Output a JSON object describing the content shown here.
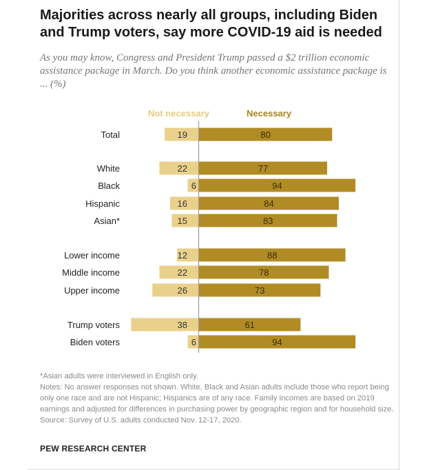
{
  "title": "Majorities across nearly all groups, including Biden and Trump voters, say more COVID-19 aid is needed",
  "subtitle": "As you may know, Congress and President Trump passed a $2 trillion economic assistance package in March. Do you think another economic assistance package is ... (%)",
  "chart_data": {
    "type": "bar",
    "orientation": "horizontal-diverging",
    "series": [
      {
        "name": "Not necessary",
        "color": "#ead18b",
        "values": [
          19,
          22,
          6,
          16,
          15,
          12,
          22,
          26,
          38,
          6
        ]
      },
      {
        "name": "Necessary",
        "color": "#b18c25",
        "values": [
          80,
          77,
          94,
          84,
          83,
          88,
          78,
          73,
          61,
          94
        ]
      }
    ],
    "categories": [
      "Total",
      "White",
      "Black",
      "Hispanic",
      "Asian*",
      "Lower income",
      "Middle income",
      "Upper income",
      "Trump voters",
      "Biden voters"
    ],
    "groups": [
      [
        0
      ],
      [
        1,
        2,
        3,
        4
      ],
      [
        5,
        6,
        7
      ],
      [
        8,
        9
      ]
    ],
    "xlim": [
      -40,
      95
    ]
  },
  "notes": {
    "asian": "*Asian adults were interviewed in English only.",
    "notes": "Notes: No answer responses not shown. White, Black and Asian adults include those who report being only one race and are not Hispanic; Hispanics are of any race. Family incomes are based on 2019 earnings and adjusted for differences in purchasing power by geographic region and for household size.",
    "source": "Source: Survey of U.S. adults conducted Nov. 12-17, 2020."
  },
  "brand": "PEW RESEARCH CENTER"
}
